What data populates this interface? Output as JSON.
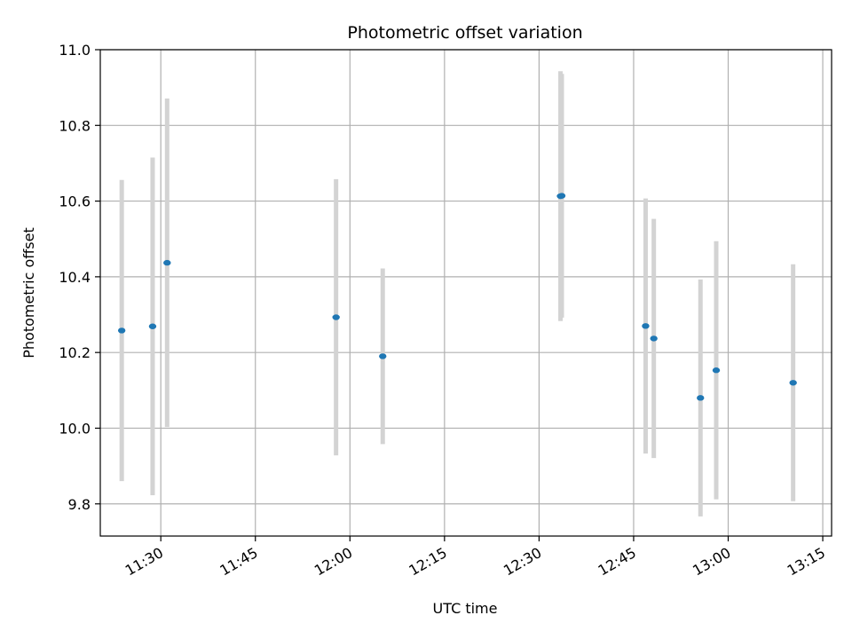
{
  "chart_data": {
    "type": "scatter",
    "title": "Photometric offset variation",
    "xlabel": "UTC time",
    "ylabel": "Photometric offset",
    "grid": true,
    "xlim": [
      "11:20:24",
      "13:16:24"
    ],
    "ylim": [
      9.715,
      11.0
    ],
    "x_ticks": [
      "11:30",
      "11:45",
      "12:00",
      "12:15",
      "12:30",
      "12:45",
      "13:00",
      "13:15"
    ],
    "y_ticks": [
      "9.8",
      "10.0",
      "10.2",
      "10.4",
      "10.6",
      "10.8",
      "11.0"
    ],
    "colors": {
      "points": "#1f77b4",
      "errorbars": "#d3d3d3",
      "grid": "#b0b0b0"
    },
    "series": [
      {
        "x": [
          "11:23:48",
          "11:28:42",
          "11:31:00",
          "11:57:48",
          "12:05:12",
          "12:33:24",
          "12:33:36",
          "12:46:54",
          "12:48:12",
          "12:55:36",
          "12:58:06",
          "13:10:18"
        ],
        "y": [
          10.258,
          10.269,
          10.437,
          10.293,
          10.19,
          10.613,
          10.614,
          10.27,
          10.237,
          10.08,
          10.153,
          10.12
        ],
        "yerr": [
          0.398,
          0.446,
          0.434,
          0.365,
          0.232,
          0.33,
          0.322,
          0.337,
          0.316,
          0.313,
          0.341,
          0.313
        ]
      }
    ]
  }
}
